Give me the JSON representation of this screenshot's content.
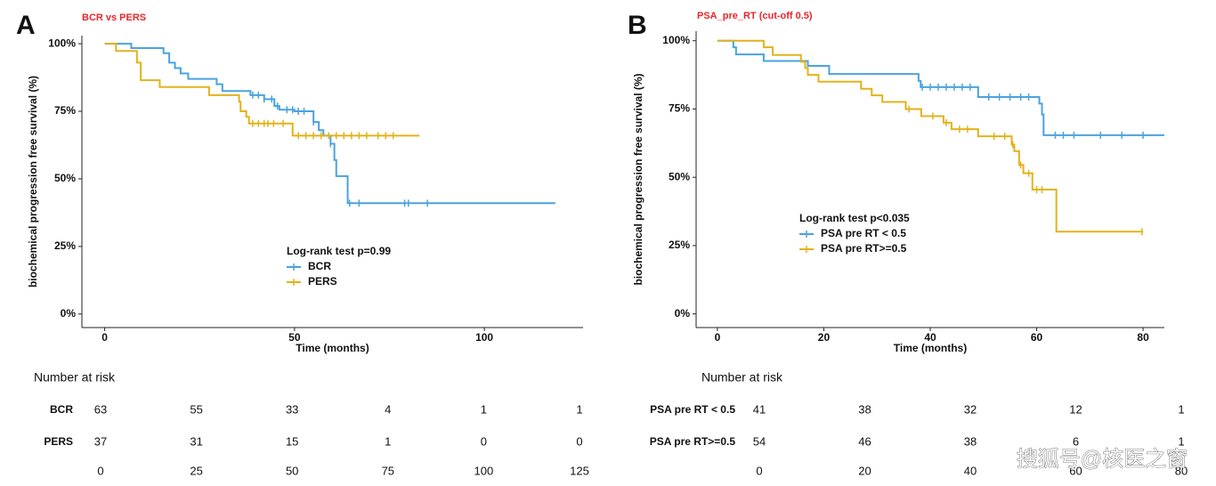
{
  "chart_data": [
    {
      "type": "step",
      "panel_label": "A",
      "title": "BCR vs PERS",
      "xlabel": "Time (months)",
      "ylabel": "biochemical progression free survival (%)",
      "xlim": [
        -6,
        126
      ],
      "ylim": [
        -5,
        103
      ],
      "xticks": [
        0,
        50,
        100
      ],
      "yticks": [
        {
          "value": 0,
          "label": "0%"
        },
        {
          "value": 25,
          "label": "25%"
        },
        {
          "value": 50,
          "label": "50%"
        },
        {
          "value": 75,
          "label": "75%"
        },
        {
          "value": 100,
          "label": "100%"
        }
      ],
      "legend_title": "Log-rank test p=0.99",
      "series": [
        {
          "name": "BCR",
          "color": "#4aa3df",
          "x": [
            0,
            7,
            15.5,
            17,
            18.5,
            20,
            22,
            29.5,
            31,
            38.4,
            42,
            44.7,
            46,
            50,
            55,
            56.4,
            57.6,
            59.5,
            60.5,
            61,
            64,
            118.7
          ],
          "values": [
            100,
            98.4,
            96.5,
            93,
            91,
            89,
            87,
            85,
            82.5,
            81,
            79.5,
            77,
            75.6,
            75,
            71,
            68,
            66,
            63,
            57,
            51,
            41,
            41
          ],
          "censored": [
            39,
            40.5,
            42,
            44,
            45.5,
            48,
            49.5,
            51,
            52.5,
            55,
            59.5,
            64.5,
            67,
            79,
            80,
            85
          ]
        },
        {
          "name": "PERS",
          "color": "#e3b21b",
          "x": [
            0,
            3,
            8.5,
            9.5,
            14.5,
            27.5,
            35.4,
            35.8,
            37.3,
            38,
            49.5,
            82.9
          ],
          "values": [
            100,
            97.3,
            93,
            86.5,
            84,
            81,
            78.5,
            75,
            73,
            70.5,
            66,
            66
          ],
          "censored": [
            39,
            40.5,
            42,
            43,
            44.5,
            47,
            51,
            53,
            55,
            57,
            59,
            61,
            63,
            65,
            67,
            69,
            72,
            74,
            76
          ]
        }
      ],
      "risk_table": {
        "title": "Number at risk",
        "times": [
          0,
          25,
          50,
          75,
          100,
          125
        ],
        "rows": [
          {
            "name": "BCR",
            "values": [
              63,
              55,
              33,
              4,
              1,
              1
            ]
          },
          {
            "name": "PERS",
            "values": [
              37,
              31,
              15,
              1,
              0,
              0
            ]
          }
        ]
      }
    },
    {
      "type": "step",
      "panel_label": "B",
      "title": "PSA_pre_RT (cut-off 0.5)",
      "xlabel": "Time (months)",
      "ylabel": "biochemical progression free survival (%)",
      "xlim": [
        -4,
        84
      ],
      "ylim": [
        -5,
        103.5
      ],
      "xticks": [
        0,
        20,
        40,
        60,
        80
      ],
      "yticks": [
        {
          "value": 0,
          "label": "0%"
        },
        {
          "value": 25,
          "label": "25%"
        },
        {
          "value": 50,
          "label": "50%"
        },
        {
          "value": 75,
          "label": "75%"
        },
        {
          "value": 100,
          "label": "100%"
        }
      ],
      "legend_title": "Log-rank test p<0.035",
      "series": [
        {
          "name": "PSA pre RT < 0.5",
          "color": "#4aa3df",
          "x": [
            0,
            3,
            3.5,
            8.7,
            17,
            21,
            37.8,
            38.2,
            49,
            60.5,
            61,
            61.3,
            84
          ],
          "values": [
            100,
            97.6,
            95,
            92.6,
            90.8,
            87.8,
            85.3,
            83,
            79.4,
            77,
            73,
            65.4,
            65.4
          ],
          "censored": [
            38.5,
            40,
            41.5,
            43,
            44.5,
            46,
            47.5,
            51,
            53,
            55,
            57,
            58.5,
            63.5,
            65,
            67,
            72,
            76,
            80
          ]
        },
        {
          "name": "PSA pre RT>=0.5",
          "color": "#e3b21b",
          "x": [
            0,
            8.7,
            10.4,
            15.7,
            16.5,
            17,
            19,
            27,
            29,
            31,
            35.4,
            38.3,
            42.5,
            44,
            49,
            55.3,
            55.8,
            56.7,
            57.5,
            59.2,
            63.7,
            80
          ],
          "values": [
            100,
            97.6,
            94.8,
            92.3,
            90,
            87.5,
            85,
            82.4,
            80,
            77.6,
            75,
            72.4,
            70,
            67.6,
            65,
            62,
            59.6,
            54.5,
            51.5,
            45.5,
            30.1,
            30.1
          ],
          "censored": [
            36,
            40.5,
            43,
            45.5,
            47,
            52,
            54,
            55.5,
            57,
            58.5,
            60,
            61,
            79.8
          ]
        }
      ],
      "risk_table": {
        "title": "Number at risk",
        "times": [
          0,
          20,
          40,
          60,
          80
        ],
        "rows": [
          {
            "name": "PSA pre RT < 0.5",
            "values": [
              41,
              38,
              32,
              12,
              1
            ]
          },
          {
            "name": "PSA pre RT>=0.5",
            "values": [
              54,
              46,
              38,
              6,
              1
            ]
          }
        ]
      }
    }
  ],
  "watermark": "搜狐号@核医之窗"
}
